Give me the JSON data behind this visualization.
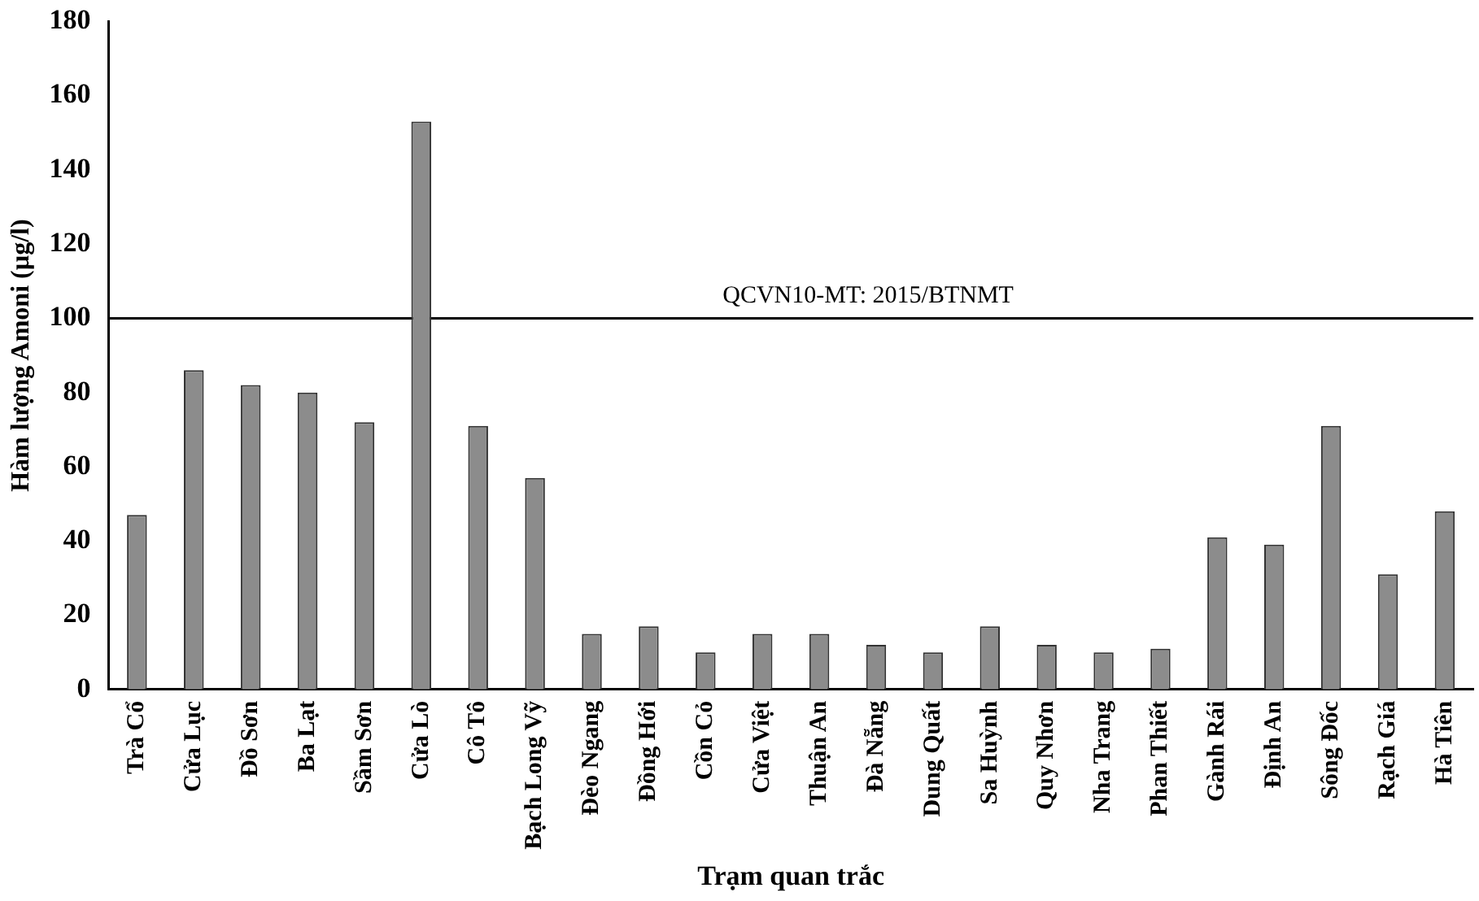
{
  "chart_data": {
    "type": "bar",
    "xlabel": "Trạm quan trắc",
    "ylabel": "Hàm lượng Amoni (µg/l)",
    "categories": [
      "Trà Cổ",
      "Cửa Lục",
      "Đồ Sơn",
      "Ba Lạt",
      "Sầm Sơn",
      "Cửa Lò",
      "Cô Tô",
      "Bạch Long Vỹ",
      "Đèo Ngang",
      "Đồng Hới",
      "Cồn Cỏ",
      "Cửa Việt",
      "Thuận An",
      "Đà Nẵng",
      "Dung Quất",
      "Sa Huỳnh",
      "Quy Nhơn",
      "Nha Trang",
      "Phan Thiết",
      "Gành Rái",
      "Định An",
      "Sông Đốc",
      "Rạch Giá",
      "Hà Tiên"
    ],
    "values": [
      47,
      86,
      82,
      80,
      72,
      153,
      71,
      57,
      15,
      17,
      10,
      15,
      15,
      12,
      10,
      17,
      12,
      10,
      11,
      41,
      39,
      71,
      31,
      48
    ],
    "color": "#8c8c8c",
    "ylim": [
      0,
      180
    ],
    "yticks": [
      0,
      20,
      40,
      60,
      80,
      100,
      120,
      140,
      160,
      180
    ],
    "grid": false,
    "legend": false,
    "ref_lines": [
      {
        "axis": "y",
        "value": 100,
        "color": "#000000"
      }
    ],
    "annotations": [
      {
        "text": "QCVN10-MT: 2015/BTNMT",
        "y": 100
      }
    ]
  }
}
